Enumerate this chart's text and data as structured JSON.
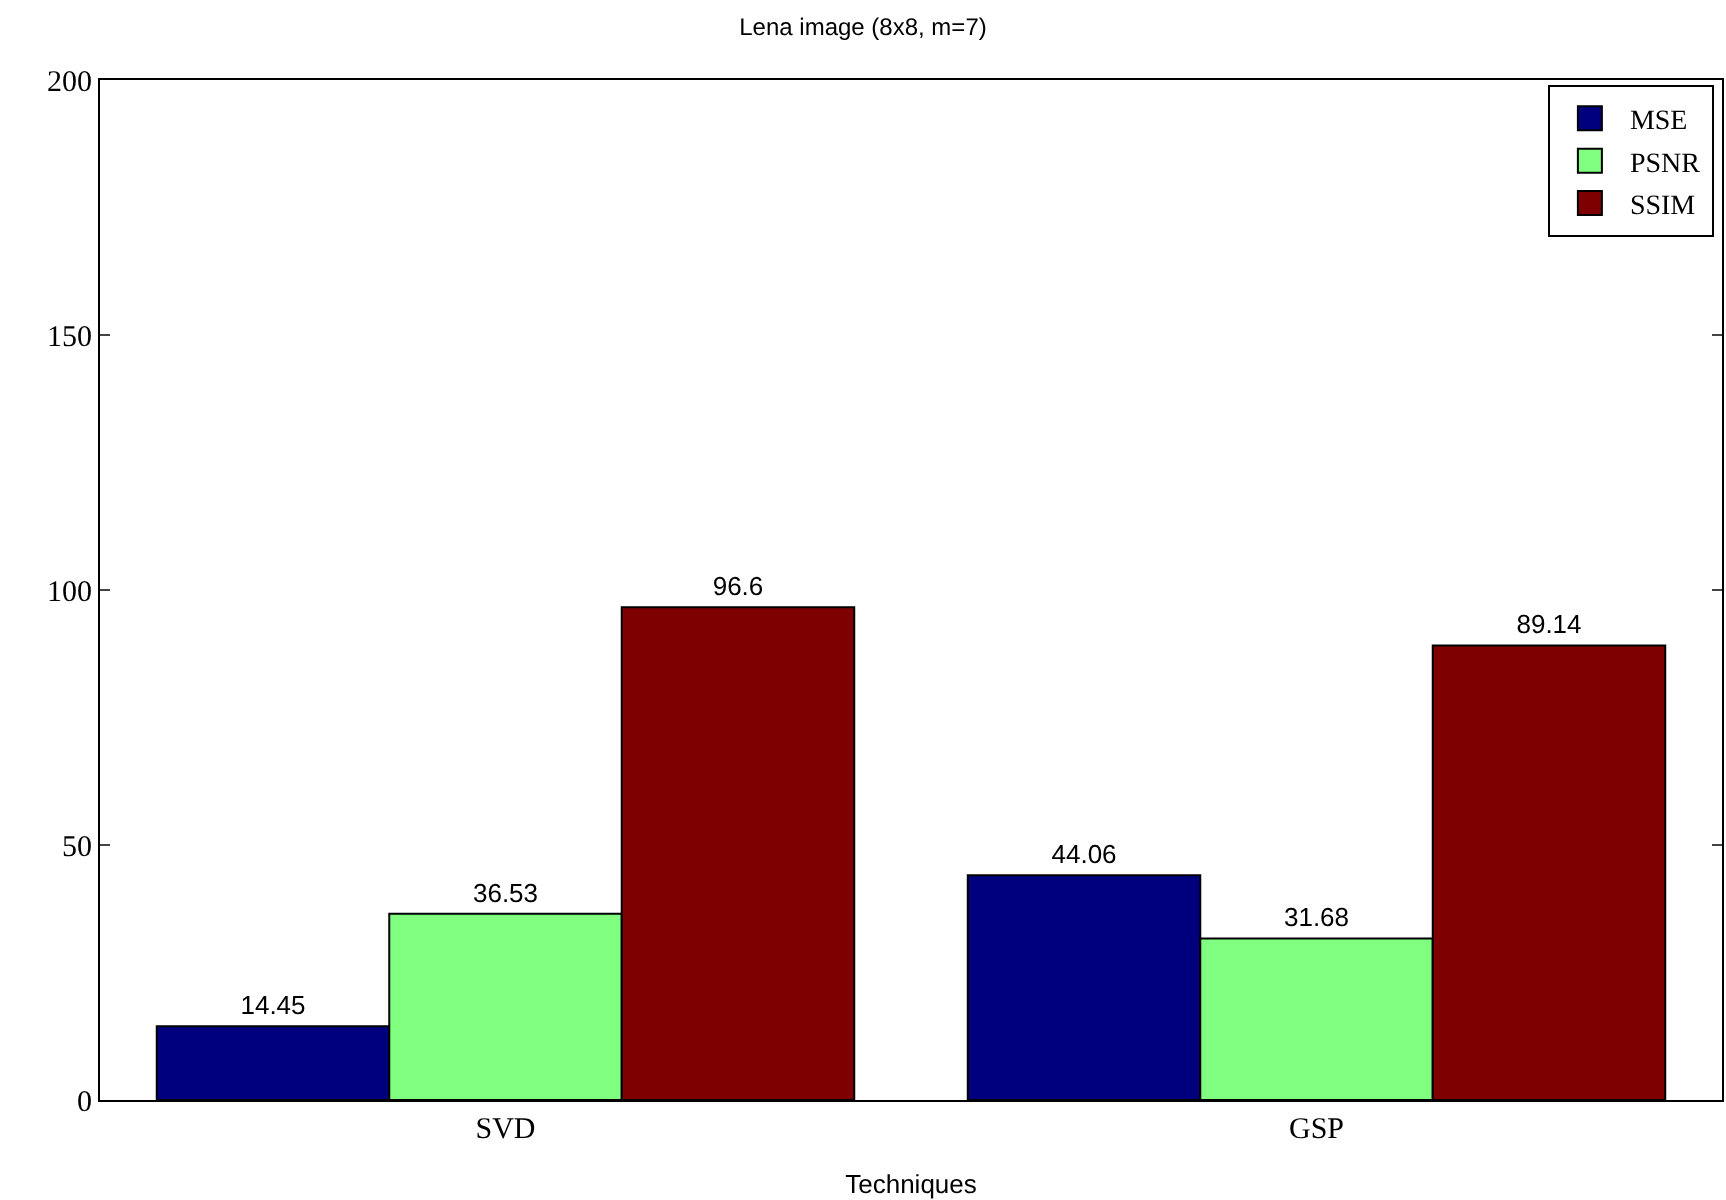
{
  "chart_data": {
    "type": "bar",
    "title": "Lena image (8x8, m=7)",
    "xlabel": "Techniques",
    "categories": [
      "SVD",
      "GSP"
    ],
    "series": [
      {
        "name": "MSE",
        "color": "#00007f",
        "values": [
          14.45,
          44.06
        ]
      },
      {
        "name": "PSNR",
        "color": "#80ff80",
        "values": [
          36.53,
          31.68
        ]
      },
      {
        "name": "SSIM",
        "color": "#7f0000",
        "values": [
          96.6,
          89.14
        ]
      }
    ],
    "ylim": [
      0,
      200
    ],
    "yticks": [
      0,
      50,
      100,
      150,
      200
    ],
    "legend": "top right",
    "data_labels": true
  }
}
